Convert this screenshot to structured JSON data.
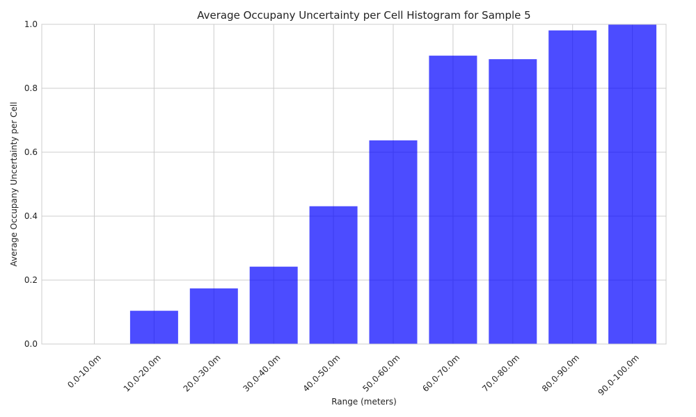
{
  "chart_data": {
    "type": "bar",
    "title": "Average Occupany Uncertainty per Cell Histogram for Sample 5",
    "xlabel": "Range (meters)",
    "ylabel": "Average Occupany Uncertainty per Cell",
    "categories": [
      "0.0-10.0m",
      "10.0-20.0m",
      "20.0-30.0m",
      "30.0-40.0m",
      "40.0-50.0m",
      "50.0-60.0m",
      "60.0-70.0m",
      "70.0-80.0m",
      "80.0-90.0m",
      "90.0-100.0m"
    ],
    "values": [
      0.0,
      0.104,
      0.174,
      0.242,
      0.431,
      0.637,
      0.902,
      0.891,
      0.981,
      0.999
    ],
    "ylim": [
      0,
      1.0
    ],
    "yticks": [
      0.0,
      0.2,
      0.4,
      0.6,
      0.8,
      1.0
    ],
    "ytick_labels": [
      "0.0",
      "0.2",
      "0.4",
      "0.6",
      "0.8",
      "1.0"
    ],
    "grid": true,
    "bar_color": "#0000ff"
  }
}
